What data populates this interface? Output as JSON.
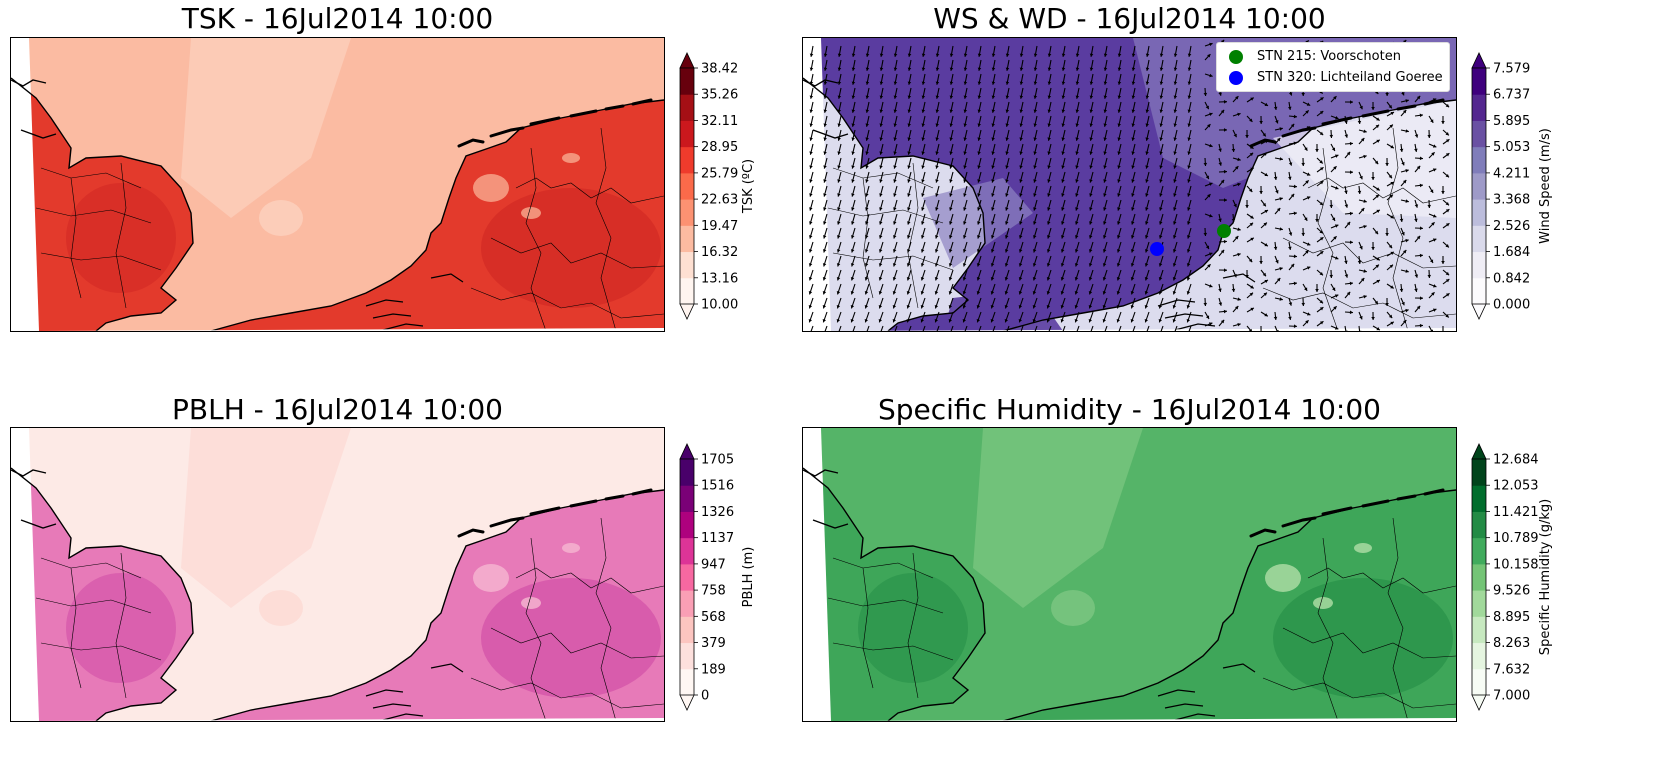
{
  "panels": [
    {
      "title": "TSK - 16Jul2014 10:00",
      "colorbar": {
        "label": "TSK (ºC)",
        "ticks": [
          "10.00",
          "13.16",
          "16.32",
          "19.47",
          "22.63",
          "25.79",
          "28.95",
          "32.11",
          "35.26",
          "38.42"
        ],
        "colors": [
          "#fff5f0",
          "#fee0d2",
          "#fcbba1",
          "#fc9272",
          "#fb6a4a",
          "#ef3b2c",
          "#cb181d",
          "#a50f15",
          "#67000d"
        ]
      },
      "palette": {
        "sea": "#fbbba2",
        "sea_near": "#fcd2bf",
        "land": "#e33a2c",
        "land_hot": "#c51d1f",
        "land_patch": "#f7a38a"
      }
    },
    {
      "title": "WS & WD - 16Jul2014 10:00",
      "colorbar": {
        "label": "Wind Speed (m/s)",
        "ticks": [
          "0.000",
          "0.842",
          "1.684",
          "2.526",
          "3.368",
          "4.211",
          "5.053",
          "5.895",
          "6.737",
          "7.579"
        ],
        "colors": [
          "#fcfbfd",
          "#efedf5",
          "#dadaeb",
          "#bcbddc",
          "#9e9ac8",
          "#807dba",
          "#6a51a3",
          "#54278f",
          "#3f007d"
        ]
      },
      "legend": [
        {
          "label": "STN 215: Voorschoten",
          "color": "#008000"
        },
        {
          "label": "STN 320: Lichteiland Goeree",
          "color": "#0000ff"
        }
      ],
      "palette": {
        "sea": "#5a3ca0",
        "sea_light": "#8d83c2",
        "land": "#dcdcee",
        "land_light": "#f1f0f8"
      }
    },
    {
      "title": "PBLH - 16Jul2014 10:00",
      "colorbar": {
        "label": "PBLH (m)",
        "ticks": [
          "0",
          "189",
          "379",
          "568",
          "758",
          "947",
          "1137",
          "1326",
          "1516",
          "1705"
        ],
        "colors": [
          "#fff7f3",
          "#fde0dd",
          "#fcc5c0",
          "#fa9fb5",
          "#f768a1",
          "#dd3497",
          "#ae017e",
          "#7a0177",
          "#49006a"
        ]
      },
      "palette": {
        "sea": "#fdeae6",
        "sea_near": "#fcd9d3",
        "land": "#e77ab8",
        "land_hot": "#c4309c",
        "land_patch": "#f4b3cf"
      }
    },
    {
      "title": "Specific Humidity - 16Jul2014 10:00",
      "colorbar": {
        "label": "Specific Humidity (g/kg)",
        "ticks": [
          "7.000",
          "7.632",
          "8.263",
          "8.895",
          "9.526",
          "10.158",
          "10.789",
          "11.421",
          "12.053",
          "12.684"
        ],
        "colors": [
          "#f7fcf5",
          "#e5f5e0",
          "#c7e9c0",
          "#a1d99b",
          "#74c476",
          "#41ab5d",
          "#238b45",
          "#006d2c",
          "#00441b"
        ]
      },
      "palette": {
        "sea": "#55b468",
        "sea_near": "#7dc782",
        "land": "#3ea659",
        "land_hot": "#17813d",
        "land_patch": "#a9dba2"
      }
    }
  ]
}
